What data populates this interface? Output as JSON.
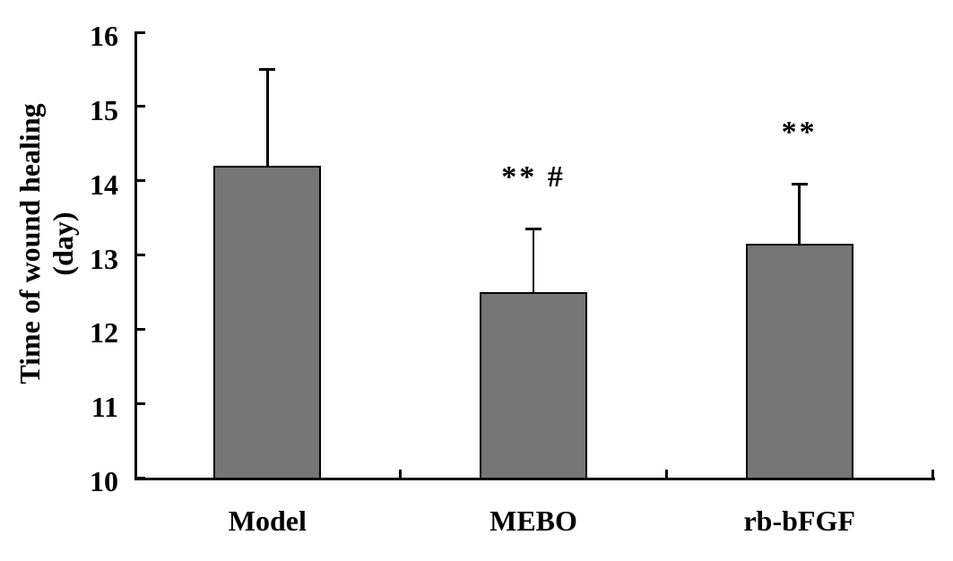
{
  "figure": {
    "background_color": "#ffffff",
    "bar_fill_color": "#767676",
    "bar_border_color": "#000000",
    "axis_color": "#000000"
  },
  "chart_data": {
    "type": "bar",
    "title": "",
    "categories": [
      "Model",
      "MEBO",
      "rb-bFGF"
    ],
    "values": [
      14.2,
      12.5,
      13.15
    ],
    "error_upper": [
      1.3,
      0.85,
      0.8
    ],
    "annotations": [
      "",
      "** #",
      "**"
    ],
    "ylabel_line1": "Time of wound healing",
    "ylabel_line2": "(day)",
    "xlabel": "",
    "ylim": [
      10,
      16
    ],
    "yticks": [
      10,
      11,
      12,
      13,
      14,
      15,
      16
    ],
    "grid": false,
    "legend": false
  }
}
